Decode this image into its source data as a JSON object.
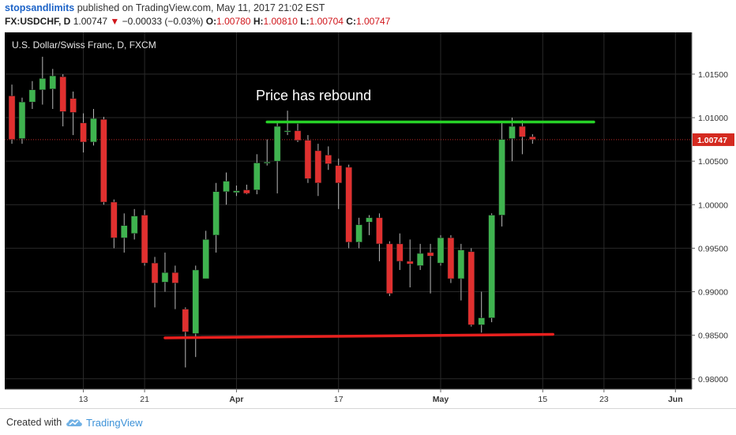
{
  "header": {
    "author": "stopsandlimits",
    "published_text": "published on TradingView.com, May 11, 2017 21:02 EST",
    "symbol": "FX:USDCHF, D",
    "last": "1.00747",
    "change_arrow": "▼",
    "change": "−0.00033 (−0.03%)",
    "o_label": "O:",
    "o_value": "1.00780",
    "h_label": "H:",
    "h_value": "1.00810",
    "l_label": "L:",
    "l_value": "1.00704",
    "c_label": "C:",
    "c_value": "1.00747"
  },
  "footer": {
    "created_with": "Created with",
    "brand": "TradingView"
  },
  "colors": {
    "background": "#000000",
    "up": "#3fb34f",
    "down": "#e0302f",
    "wick": "#b9b9b9",
    "support_line": "#e8201e",
    "resistance_line": "#27d127",
    "price_tag": "#d42a20",
    "axis_panel": "#ffffff"
  },
  "chart_data": {
    "type": "candlestick",
    "title": "U.S. Dollar/Swiss Franc, D, FXCM",
    "annotation": "Price has rebound",
    "last_price_label": "1.00747",
    "y_ticks": [
      "1.01500",
      "1.01000",
      "1.00500",
      "1.00000",
      "0.99500",
      "0.99000",
      "0.98500",
      "0.98000"
    ],
    "ylim": [
      0.9788,
      1.0198
    ],
    "x_ticks": [
      {
        "label": "13",
        "x": 7
      },
      {
        "label": "21",
        "x": 13
      },
      {
        "label": "Apr",
        "x": 22
      },
      {
        "label": "17",
        "x": 32
      },
      {
        "label": "May",
        "x": 42
      },
      {
        "label": "15",
        "x": 52
      },
      {
        "label": "23",
        "x": 58
      },
      {
        "label": "Jun",
        "x": 65
      }
    ],
    "xlim": [
      -0.7,
      66.6
    ],
    "candles": [
      {
        "x": 0,
        "o": 1.0125,
        "h": 1.0138,
        "l": 1.007,
        "c": 1.0075
      },
      {
        "x": 1,
        "o": 1.0076,
        "h": 1.0123,
        "l": 1.007,
        "c": 1.0118
      },
      {
        "x": 2,
        "o": 1.0118,
        "h": 1.0142,
        "l": 1.011,
        "c": 1.0132
      },
      {
        "x": 3,
        "o": 1.0132,
        "h": 1.017,
        "l": 1.0115,
        "c": 1.0145
      },
      {
        "x": 4,
        "o": 1.0133,
        "h": 1.0156,
        "l": 1.011,
        "c": 1.0148
      },
      {
        "x": 5,
        "o": 1.0147,
        "h": 1.015,
        "l": 1.009,
        "c": 1.0107
      },
      {
        "x": 6,
        "o": 1.0122,
        "h": 1.013,
        "l": 1.008,
        "c": 1.0106
      },
      {
        "x": 7,
        "o": 1.0094,
        "h": 1.0105,
        "l": 1.006,
        "c": 1.0072
      },
      {
        "x": 8,
        "o": 1.0072,
        "h": 1.011,
        "l": 1.0068,
        "c": 1.0099
      },
      {
        "x": 9,
        "o": 1.0098,
        "h": 1.0101,
        "l": 1.0,
        "c": 1.0003
      },
      {
        "x": 10,
        "o": 1.0003,
        "h": 1.0006,
        "l": 0.995,
        "c": 0.9962
      },
      {
        "x": 11,
        "o": 0.9962,
        "h": 0.999,
        "l": 0.9945,
        "c": 0.9976
      },
      {
        "x": 12,
        "o": 0.9967,
        "h": 0.9995,
        "l": 0.996,
        "c": 0.9987
      },
      {
        "x": 13,
        "o": 0.9988,
        "h": 0.9994,
        "l": 0.993,
        "c": 0.9933
      },
      {
        "x": 14,
        "o": 0.9933,
        "h": 0.994,
        "l": 0.9882,
        "c": 0.991
      },
      {
        "x": 15,
        "o": 0.9911,
        "h": 0.9945,
        "l": 0.99,
        "c": 0.9922
      },
      {
        "x": 16,
        "o": 0.9922,
        "h": 0.993,
        "l": 0.988,
        "c": 0.991
      },
      {
        "x": 17,
        "o": 0.988,
        "h": 0.9882,
        "l": 0.9813,
        "c": 0.9854
      },
      {
        "x": 18,
        "o": 0.9852,
        "h": 0.993,
        "l": 0.9825,
        "c": 0.9925
      },
      {
        "x": 19,
        "o": 0.9915,
        "h": 0.997,
        "l": 0.9915,
        "c": 0.996
      },
      {
        "x": 20,
        "o": 0.9965,
        "h": 1.0025,
        "l": 0.9945,
        "c": 1.0015
      },
      {
        "x": 21,
        "o": 1.0015,
        "h": 1.0037,
        "l": 1.0,
        "c": 1.0027
      },
      {
        "x": 22,
        "o": 1.0014,
        "h": 1.0022,
        "l": 1.001,
        "c": 1.0016
      },
      {
        "x": 23,
        "o": 1.0017,
        "h": 1.0023,
        "l": 1.0012,
        "c": 1.0013
      },
      {
        "x": 24,
        "o": 1.0017,
        "h": 1.0058,
        "l": 1.0012,
        "c": 1.0048
      },
      {
        "x": 25,
        "o": 1.0048,
        "h": 1.0075,
        "l": 1.0045,
        "c": 1.0049
      },
      {
        "x": 26,
        "o": 1.005,
        "h": 1.0095,
        "l": 1.0013,
        "c": 1.009
      },
      {
        "x": 27,
        "o": 1.0085,
        "h": 1.0108,
        "l": 1.008,
        "c": 1.0085
      },
      {
        "x": 28,
        "o": 1.0085,
        "h": 1.0093,
        "l": 1.0072,
        "c": 1.0074
      },
      {
        "x": 29,
        "o": 1.0074,
        "h": 1.008,
        "l": 1.0025,
        "c": 1.003
      },
      {
        "x": 30,
        "o": 1.0062,
        "h": 1.007,
        "l": 1.001,
        "c": 1.0025
      },
      {
        "x": 31,
        "o": 1.0057,
        "h": 1.0067,
        "l": 1.004,
        "c": 1.0047
      },
      {
        "x": 32,
        "o": 1.0045,
        "h": 1.0053,
        "l": 0.9995,
        "c": 1.0025
      },
      {
        "x": 33,
        "o": 1.0043,
        "h": 1.0046,
        "l": 0.995,
        "c": 0.9957
      },
      {
        "x": 34,
        "o": 0.9957,
        "h": 0.9985,
        "l": 0.995,
        "c": 0.9977
      },
      {
        "x": 35,
        "o": 0.998,
        "h": 0.9988,
        "l": 0.9965,
        "c": 0.9985
      },
      {
        "x": 36,
        "o": 0.9985,
        "h": 0.999,
        "l": 0.9935,
        "c": 0.9955
      },
      {
        "x": 37,
        "o": 0.9955,
        "h": 0.9958,
        "l": 0.9895,
        "c": 0.9898
      },
      {
        "x": 38,
        "o": 0.9955,
        "h": 0.9967,
        "l": 0.9925,
        "c": 0.9935
      },
      {
        "x": 39,
        "o": 0.9935,
        "h": 0.996,
        "l": 0.9905,
        "c": 0.9932
      },
      {
        "x": 40,
        "o": 0.993,
        "h": 0.9955,
        "l": 0.9925,
        "c": 0.9944
      },
      {
        "x": 41,
        "o": 0.9945,
        "h": 0.9955,
        "l": 0.9898,
        "c": 0.9941
      },
      {
        "x": 42,
        "o": 0.9933,
        "h": 0.9965,
        "l": 0.993,
        "c": 0.9962
      },
      {
        "x": 43,
        "o": 0.9962,
        "h": 0.9965,
        "l": 0.991,
        "c": 0.9915
      },
      {
        "x": 44,
        "o": 0.9915,
        "h": 0.9955,
        "l": 0.989,
        "c": 0.9948
      },
      {
        "x": 45,
        "o": 0.9946,
        "h": 0.995,
        "l": 0.986,
        "c": 0.9862
      },
      {
        "x": 46,
        "o": 0.9862,
        "h": 0.99,
        "l": 0.9853,
        "c": 0.987
      },
      {
        "x": 47,
        "o": 0.987,
        "h": 0.999,
        "l": 0.9865,
        "c": 0.9988
      },
      {
        "x": 48,
        "o": 0.9988,
        "h": 1.0095,
        "l": 0.9975,
        "c": 1.0075
      },
      {
        "x": 49,
        "o": 1.0076,
        "h": 1.01,
        "l": 1.005,
        "c": 1.009
      },
      {
        "x": 50,
        "o": 1.009,
        "h": 1.0097,
        "l": 1.0058,
        "c": 1.0078
      },
      {
        "x": 51,
        "o": 1.0078,
        "h": 1.0081,
        "l": 1.007,
        "c": 1.0075
      }
    ],
    "support_line": [
      {
        "x": 15,
        "y": 0.9847
      },
      {
        "x": 53,
        "y": 0.9851
      }
    ],
    "resistance_line": [
      {
        "x": 25,
        "y": 1.0095
      },
      {
        "x": 57,
        "y": 1.0095
      }
    ],
    "last_price_line": 1.00747
  }
}
